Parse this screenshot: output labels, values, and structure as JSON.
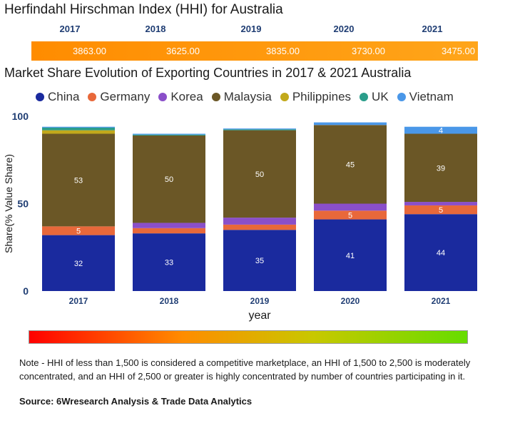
{
  "hhi": {
    "title": "Herfindahl Hirschman Index (HHI) for Australia",
    "years": [
      "2017",
      "2018",
      "2019",
      "2020",
      "2021"
    ],
    "values": [
      "3863.00",
      "3625.00",
      "3835.00",
      "3730.00",
      "3475.00"
    ],
    "bar_color": "#ff9800"
  },
  "chart_data": {
    "type": "bar",
    "stacked": true,
    "title": "Market Share Evolution of Exporting Countries in 2017 & 2021 Australia",
    "xlabel": "year",
    "ylabel": "Share(% Value Share)",
    "ylim": [
      0,
      100
    ],
    "yticks": [
      0,
      50,
      100
    ],
    "categories": [
      "2017",
      "2018",
      "2019",
      "2020",
      "2021"
    ],
    "legend_position": "top",
    "series": [
      {
        "name": "China",
        "color": "#1a2a9e",
        "values": [
          32,
          33,
          35,
          41,
          44
        ],
        "labels": [
          "32",
          "33",
          "35",
          "41",
          "44"
        ]
      },
      {
        "name": "Germany",
        "color": "#e8683a",
        "values": [
          5,
          3,
          3,
          5,
          5
        ],
        "labels": [
          "5",
          "",
          "",
          "5",
          "5"
        ]
      },
      {
        "name": "Korea",
        "color": "#8a4fc9",
        "values": [
          0,
          3,
          4,
          4,
          2
        ],
        "labels": [
          "",
          "",
          "",
          "",
          ""
        ]
      },
      {
        "name": "Malaysia",
        "color": "#6b5726",
        "values": [
          53,
          50,
          50,
          45,
          39
        ],
        "labels": [
          "53",
          "50",
          "50",
          "45",
          "39"
        ]
      },
      {
        "name": "Philippines",
        "color": "#c2a91b",
        "values": [
          2,
          0,
          0,
          0,
          0
        ],
        "labels": [
          "",
          "",
          "",
          "",
          ""
        ]
      },
      {
        "name": "UK",
        "color": "#2a9d8a",
        "values": [
          1.5,
          0.5,
          0.5,
          0,
          0
        ],
        "labels": [
          "",
          "",
          "",
          "",
          ""
        ]
      },
      {
        "name": "Vietnam",
        "color": "#4a97e8",
        "values": [
          0.5,
          0.5,
          0.5,
          1.5,
          4
        ],
        "labels": [
          "",
          "",
          "",
          "",
          "4"
        ]
      }
    ]
  },
  "note": "Note - HHI of less than 1,500 is considered a competitive marketplace, an HHI of 1,500 to 2,500 is moderately concentrated, and an HHI of 2,500 or greater is highly concentrated by number of countries participating in it.",
  "source": "Source: 6Wresearch Analysis & Trade Data Analytics"
}
